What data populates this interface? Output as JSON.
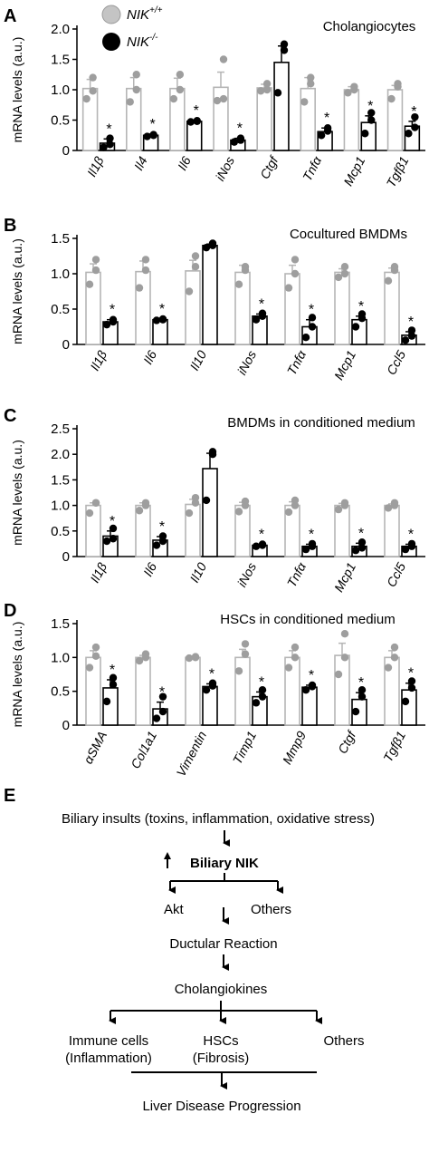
{
  "legend": {
    "wt_base": "NIK",
    "wt_sup": "+/+",
    "ko_base": "NIK",
    "ko_sup": "-/-",
    "wt_color": "#b5b5b5",
    "ko_color": "#000000"
  },
  "significance_mark": "*",
  "chart_data": [
    {
      "type": "bar",
      "panel": "A",
      "title": "Cholangiocytes",
      "ylabel": "mRNA levels (a.u.)",
      "ylim": [
        0,
        2.0
      ],
      "yticks": [
        "0",
        "0.5",
        "1.0",
        "1.5",
        "2.0"
      ],
      "yticks_values": [
        0,
        0.5,
        1.0,
        1.5,
        2.0
      ],
      "categories": [
        "Il1β",
        "Il4",
        "Il6",
        "iNos",
        "Ctgf",
        "Tnfα",
        "Mcp1",
        "Tgfβ1"
      ],
      "significant": [
        true,
        true,
        true,
        true,
        false,
        true,
        true,
        true
      ],
      "series": [
        {
          "name": "NIK+/+",
          "values": [
            1.02,
            1.02,
            1.02,
            1.04,
            1.03,
            1.02,
            1.0,
            1.0
          ],
          "errors": [
            0.15,
            0.18,
            0.17,
            0.25,
            0.06,
            0.18,
            0.05,
            0.07
          ],
          "points": [
            [
              0.85,
              0.98,
              1.2
            ],
            [
              0.8,
              1.0,
              1.25
            ],
            [
              0.85,
              1.0,
              1.25
            ],
            [
              0.82,
              0.85,
              1.5
            ],
            [
              0.98,
              1.0,
              1.1
            ],
            [
              0.8,
              1.1,
              1.2
            ],
            [
              0.95,
              1.0,
              1.05
            ],
            [
              0.85,
              1.05,
              1.1
            ]
          ]
        },
        {
          "name": "NIK-/-",
          "values": [
            0.12,
            0.25,
            0.48,
            0.17,
            1.45,
            0.31,
            0.46,
            0.4
          ],
          "errors": [
            0.07,
            0.02,
            0.01,
            0.03,
            0.27,
            0.06,
            0.11,
            0.08
          ],
          "points": [
            [
              0.05,
              0.1,
              0.2
            ],
            [
              0.23,
              0.25,
              0.26
            ],
            [
              0.47,
              0.48,
              0.49
            ],
            [
              0.14,
              0.17,
              0.2
            ],
            [
              0.95,
              1.65,
              1.75
            ],
            [
              0.25,
              0.32,
              0.37
            ],
            [
              0.28,
              0.5,
              0.62
            ],
            [
              0.28,
              0.38,
              0.55
            ]
          ]
        }
      ]
    },
    {
      "type": "bar",
      "panel": "B",
      "title": "Cocultured BMDMs",
      "ylabel": "mRNA levels (a.u.)",
      "ylim": [
        0,
        1.5
      ],
      "yticks": [
        "0",
        "0.5",
        "1.0",
        "1.5"
      ],
      "yticks_values": [
        0,
        0.5,
        1.0,
        1.5
      ],
      "categories": [
        "Il1β",
        "Il6",
        "Il10",
        "iNos",
        "Tnfα",
        "Mcp1",
        "Ccl5"
      ],
      "significant": [
        true,
        true,
        false,
        true,
        true,
        true,
        true
      ],
      "series": [
        {
          "name": "NIK+/+",
          "values": [
            1.02,
            1.03,
            1.04,
            1.02,
            1.0,
            1.02,
            1.02
          ],
          "errors": [
            0.12,
            0.15,
            0.15,
            0.1,
            0.12,
            0.05,
            0.06
          ],
          "points": [
            [
              0.85,
              1.05,
              1.2
            ],
            [
              0.8,
              1.05,
              1.2
            ],
            [
              0.75,
              1.1,
              1.25
            ],
            [
              0.85,
              1.05,
              1.1
            ],
            [
              0.8,
              1.0,
              1.2
            ],
            [
              0.95,
              1.0,
              1.1
            ],
            [
              0.9,
              1.05,
              1.1
            ]
          ]
        },
        {
          "name": "NIK-/-",
          "values": [
            0.32,
            0.35,
            1.4,
            0.4,
            0.25,
            0.35,
            0.13
          ],
          "errors": [
            0.03,
            0.01,
            0.02,
            0.03,
            0.1,
            0.05,
            0.05
          ],
          "points": [
            [
              0.28,
              0.32,
              0.35
            ],
            [
              0.34,
              0.35,
              0.36
            ],
            [
              1.37,
              1.4,
              1.43
            ],
            [
              0.35,
              0.4,
              0.44
            ],
            [
              0.1,
              0.25,
              0.38
            ],
            [
              0.25,
              0.37,
              0.43
            ],
            [
              0.06,
              0.12,
              0.2
            ]
          ]
        }
      ]
    },
    {
      "type": "bar",
      "panel": "C",
      "title": "BMDMs in conditioned medium",
      "ylabel": "mRNA levels (a.u.)",
      "ylim": [
        0,
        2.5
      ],
      "yticks": [
        "0",
        "0.5",
        "1.0",
        "1.5",
        "2.0",
        "2.5"
      ],
      "yticks_values": [
        0,
        0.5,
        1.0,
        1.5,
        2.0,
        2.5
      ],
      "categories": [
        "Il1β",
        "Il6",
        "Il10",
        "iNos",
        "Tnfα",
        "Mcp1",
        "Ccl5"
      ],
      "significant": [
        true,
        true,
        false,
        true,
        true,
        true,
        true
      ],
      "series": [
        {
          "name": "NIK+/+",
          "values": [
            1.0,
            1.0,
            1.02,
            1.0,
            1.0,
            1.0,
            1.0
          ],
          "errors": [
            0.05,
            0.05,
            0.1,
            0.06,
            0.07,
            0.04,
            0.03
          ],
          "points": [
            [
              0.85,
              1.05,
              1.05
            ],
            [
              0.9,
              1.0,
              1.05
            ],
            [
              0.85,
              1.05,
              1.15
            ],
            [
              0.88,
              1.0,
              1.08
            ],
            [
              0.87,
              1.0,
              1.1
            ],
            [
              0.92,
              1.0,
              1.05
            ],
            [
              0.95,
              1.0,
              1.05
            ]
          ]
        },
        {
          "name": "NIK-/-",
          "values": [
            0.4,
            0.32,
            1.72,
            0.22,
            0.2,
            0.2,
            0.2
          ],
          "errors": [
            0.1,
            0.07,
            0.3,
            0.02,
            0.04,
            0.06,
            0.04
          ],
          "points": [
            [
              0.3,
              0.35,
              0.55
            ],
            [
              0.22,
              0.3,
              0.4
            ],
            [
              1.1,
              2.0,
              2.05
            ],
            [
              0.2,
              0.22,
              0.24
            ],
            [
              0.14,
              0.2,
              0.25
            ],
            [
              0.12,
              0.17,
              0.28
            ],
            [
              0.14,
              0.2,
              0.25
            ]
          ]
        }
      ]
    },
    {
      "type": "bar",
      "panel": "D",
      "title": "HSCs in conditioned medium",
      "ylabel": "mRNA levels (a.u.)",
      "ylim": [
        0,
        1.5
      ],
      "yticks": [
        "0",
        "0.5",
        "1.0",
        "1.5"
      ],
      "yticks_values": [
        0,
        0.5,
        1.0,
        1.5
      ],
      "categories": [
        "αSMA",
        "Col1a1",
        "Vimentin",
        "Timp1",
        "Mmp9",
        "Ctgf",
        "Tgfβ1"
      ],
      "significant": [
        true,
        true,
        true,
        true,
        true,
        true,
        true
      ],
      "series": [
        {
          "name": "NIK+/+",
          "values": [
            1.0,
            1.0,
            1.0,
            1.0,
            1.0,
            1.03,
            1.0
          ],
          "errors": [
            0.1,
            0.03,
            0.01,
            0.12,
            0.1,
            0.18,
            0.1
          ],
          "points": [
            [
              0.85,
              1.02,
              1.15
            ],
            [
              0.95,
              1.0,
              1.05
            ],
            [
              0.99,
              1.0,
              1.01
            ],
            [
              0.8,
              1.05,
              1.2
            ],
            [
              0.85,
              1.0,
              1.15
            ],
            [
              0.75,
              1.0,
              1.35
            ],
            [
              0.85,
              1.0,
              1.15
            ]
          ]
        },
        {
          "name": "NIK-/-",
          "values": [
            0.55,
            0.24,
            0.57,
            0.42,
            0.56,
            0.38,
            0.52
          ],
          "errors": [
            0.12,
            0.1,
            0.04,
            0.07,
            0.03,
            0.1,
            0.1
          ],
          "points": [
            [
              0.35,
              0.6,
              0.7
            ],
            [
              0.1,
              0.2,
              0.42
            ],
            [
              0.52,
              0.58,
              0.62
            ],
            [
              0.33,
              0.42,
              0.52
            ],
            [
              0.52,
              0.57,
              0.59
            ],
            [
              0.2,
              0.42,
              0.52
            ],
            [
              0.35,
              0.55,
              0.65
            ]
          ]
        }
      ]
    }
  ],
  "diagram": {
    "panel": "E",
    "top": "Biliary insults (toxins, inflammation, oxidative stress)",
    "nik": "Biliary NIK",
    "akt": "Akt",
    "others1": "Others",
    "ductular": "Ductular Reaction",
    "cholangiokines": "Cholangiokines",
    "immune1": "Immune cells",
    "immune2": "(Inflammation)",
    "hsc1": "HSCs",
    "hsc2": "(Fibrosis)",
    "others2": "Others",
    "bottom": "Liver Disease Progression"
  }
}
